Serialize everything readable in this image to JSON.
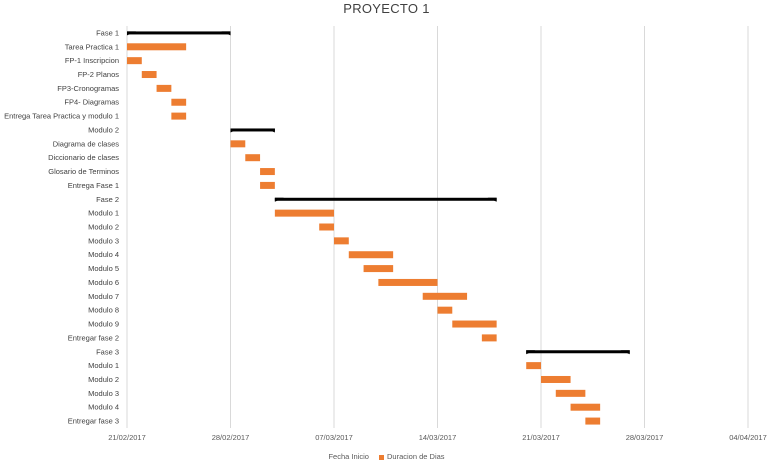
{
  "chart_data": {
    "type": "bar",
    "stacked": true,
    "orientation": "horizontal",
    "title": "PROYECTO 1",
    "x_axis": {
      "type": "date",
      "min": "2017-02-21",
      "max": "2017-04-04",
      "tick_labels": [
        "21/02/2017",
        "28/02/2017",
        "07/03/2017",
        "14/03/2017",
        "21/03/2017",
        "28/03/2017",
        "04/04/2017"
      ],
      "grid": true
    },
    "legend": {
      "position": "bottom",
      "entries": [
        "Fecha Inicio",
        "Duracion de Dias"
      ]
    },
    "series": [
      {
        "name": "Fecha Inicio",
        "color": "none",
        "visible": false
      },
      {
        "name": "Duracion de Dias",
        "color": "#ED7D31"
      }
    ],
    "summary_bar_color": "#000000",
    "tasks": [
      {
        "label": "Fase 1",
        "start": "2017-02-21",
        "duration": 7,
        "summary": true
      },
      {
        "label": "Tarea Practica 1",
        "start": "2017-02-21",
        "duration": 4
      },
      {
        "label": "FP-1 Inscripcion",
        "start": "2017-02-21",
        "duration": 1
      },
      {
        "label": "FP-2 Planos",
        "start": "2017-02-22",
        "duration": 1
      },
      {
        "label": "FP3-Cronogramas",
        "start": "2017-02-23",
        "duration": 1
      },
      {
        "label": "FP4- Diagramas",
        "start": "2017-02-24",
        "duration": 1
      },
      {
        "label": "Entrega Tarea Practica y modulo 1",
        "start": "2017-02-24",
        "duration": 1
      },
      {
        "label": "Modulo 2",
        "start": "2017-02-28",
        "duration": 3,
        "summary": true
      },
      {
        "label": "Diagrama de clases",
        "start": "2017-02-28",
        "duration": 1
      },
      {
        "label": "Diccionario de clases",
        "start": "2017-03-01",
        "duration": 1
      },
      {
        "label": "Glosario de Terminos",
        "start": "2017-03-02",
        "duration": 1
      },
      {
        "label": "Entrega Fase 1",
        "start": "2017-03-02",
        "duration": 1
      },
      {
        "label": "Fase 2",
        "start": "2017-03-03",
        "duration": 15,
        "summary": true
      },
      {
        "label": "Modulo 1",
        "start": "2017-03-03",
        "duration": 4
      },
      {
        "label": "Modulo 2",
        "start": "2017-03-06",
        "duration": 1
      },
      {
        "label": "Modulo 3",
        "start": "2017-03-07",
        "duration": 1
      },
      {
        "label": "Modulo 4",
        "start": "2017-03-08",
        "duration": 3
      },
      {
        "label": "Modulo 5",
        "start": "2017-03-09",
        "duration": 2
      },
      {
        "label": "Modulo 6",
        "start": "2017-03-10",
        "duration": 4
      },
      {
        "label": "Modulo 7",
        "start": "2017-03-13",
        "duration": 3
      },
      {
        "label": "Modulo 8",
        "start": "2017-03-14",
        "duration": 1
      },
      {
        "label": "Modulo 9",
        "start": "2017-03-15",
        "duration": 3
      },
      {
        "label": "Entregar fase 2",
        "start": "2017-03-17",
        "duration": 1
      },
      {
        "label": "Fase 3",
        "start": "2017-03-20",
        "duration": 7,
        "summary": true
      },
      {
        "label": "Modulo 1",
        "start": "2017-03-20",
        "duration": 1
      },
      {
        "label": "Modulo 2",
        "start": "2017-03-21",
        "duration": 2
      },
      {
        "label": "Modulo 3",
        "start": "2017-03-22",
        "duration": 2
      },
      {
        "label": "Modulo 4",
        "start": "2017-03-23",
        "duration": 2
      },
      {
        "label": "Entregar fase 3",
        "start": "2017-03-24",
        "duration": 1
      }
    ]
  }
}
